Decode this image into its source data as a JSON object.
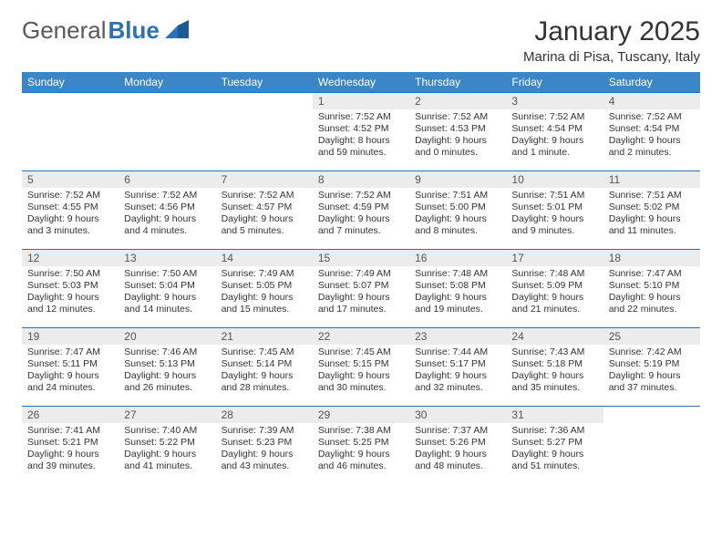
{
  "brand": {
    "part1": "General",
    "part2": "Blue"
  },
  "title": "January 2025",
  "location": "Marina di Pisa, Tuscany, Italy",
  "colors": {
    "header_bg": "#3b86c6",
    "border": "#2a72b5",
    "daynum_bg": "#ececec",
    "text": "#333333"
  },
  "weekdays": [
    "Sunday",
    "Monday",
    "Tuesday",
    "Wednesday",
    "Thursday",
    "Friday",
    "Saturday"
  ],
  "weeks": [
    [
      {
        "blank": true
      },
      {
        "blank": true
      },
      {
        "blank": true
      },
      {
        "day": "1",
        "sunrise": "Sunrise: 7:52 AM",
        "sunset": "Sunset: 4:52 PM",
        "daylight": "Daylight: 8 hours and 59 minutes."
      },
      {
        "day": "2",
        "sunrise": "Sunrise: 7:52 AM",
        "sunset": "Sunset: 4:53 PM",
        "daylight": "Daylight: 9 hours and 0 minutes."
      },
      {
        "day": "3",
        "sunrise": "Sunrise: 7:52 AM",
        "sunset": "Sunset: 4:54 PM",
        "daylight": "Daylight: 9 hours and 1 minute."
      },
      {
        "day": "4",
        "sunrise": "Sunrise: 7:52 AM",
        "sunset": "Sunset: 4:54 PM",
        "daylight": "Daylight: 9 hours and 2 minutes."
      }
    ],
    [
      {
        "day": "5",
        "sunrise": "Sunrise: 7:52 AM",
        "sunset": "Sunset: 4:55 PM",
        "daylight": "Daylight: 9 hours and 3 minutes."
      },
      {
        "day": "6",
        "sunrise": "Sunrise: 7:52 AM",
        "sunset": "Sunset: 4:56 PM",
        "daylight": "Daylight: 9 hours and 4 minutes."
      },
      {
        "day": "7",
        "sunrise": "Sunrise: 7:52 AM",
        "sunset": "Sunset: 4:57 PM",
        "daylight": "Daylight: 9 hours and 5 minutes."
      },
      {
        "day": "8",
        "sunrise": "Sunrise: 7:52 AM",
        "sunset": "Sunset: 4:59 PM",
        "daylight": "Daylight: 9 hours and 7 minutes."
      },
      {
        "day": "9",
        "sunrise": "Sunrise: 7:51 AM",
        "sunset": "Sunset: 5:00 PM",
        "daylight": "Daylight: 9 hours and 8 minutes."
      },
      {
        "day": "10",
        "sunrise": "Sunrise: 7:51 AM",
        "sunset": "Sunset: 5:01 PM",
        "daylight": "Daylight: 9 hours and 9 minutes."
      },
      {
        "day": "11",
        "sunrise": "Sunrise: 7:51 AM",
        "sunset": "Sunset: 5:02 PM",
        "daylight": "Daylight: 9 hours and 11 minutes."
      }
    ],
    [
      {
        "day": "12",
        "sunrise": "Sunrise: 7:50 AM",
        "sunset": "Sunset: 5:03 PM",
        "daylight": "Daylight: 9 hours and 12 minutes."
      },
      {
        "day": "13",
        "sunrise": "Sunrise: 7:50 AM",
        "sunset": "Sunset: 5:04 PM",
        "daylight": "Daylight: 9 hours and 14 minutes."
      },
      {
        "day": "14",
        "sunrise": "Sunrise: 7:49 AM",
        "sunset": "Sunset: 5:05 PM",
        "daylight": "Daylight: 9 hours and 15 minutes."
      },
      {
        "day": "15",
        "sunrise": "Sunrise: 7:49 AM",
        "sunset": "Sunset: 5:07 PM",
        "daylight": "Daylight: 9 hours and 17 minutes."
      },
      {
        "day": "16",
        "sunrise": "Sunrise: 7:48 AM",
        "sunset": "Sunset: 5:08 PM",
        "daylight": "Daylight: 9 hours and 19 minutes."
      },
      {
        "day": "17",
        "sunrise": "Sunrise: 7:48 AM",
        "sunset": "Sunset: 5:09 PM",
        "daylight": "Daylight: 9 hours and 21 minutes."
      },
      {
        "day": "18",
        "sunrise": "Sunrise: 7:47 AM",
        "sunset": "Sunset: 5:10 PM",
        "daylight": "Daylight: 9 hours and 22 minutes."
      }
    ],
    [
      {
        "day": "19",
        "sunrise": "Sunrise: 7:47 AM",
        "sunset": "Sunset: 5:11 PM",
        "daylight": "Daylight: 9 hours and 24 minutes."
      },
      {
        "day": "20",
        "sunrise": "Sunrise: 7:46 AM",
        "sunset": "Sunset: 5:13 PM",
        "daylight": "Daylight: 9 hours and 26 minutes."
      },
      {
        "day": "21",
        "sunrise": "Sunrise: 7:45 AM",
        "sunset": "Sunset: 5:14 PM",
        "daylight": "Daylight: 9 hours and 28 minutes."
      },
      {
        "day": "22",
        "sunrise": "Sunrise: 7:45 AM",
        "sunset": "Sunset: 5:15 PM",
        "daylight": "Daylight: 9 hours and 30 minutes."
      },
      {
        "day": "23",
        "sunrise": "Sunrise: 7:44 AM",
        "sunset": "Sunset: 5:17 PM",
        "daylight": "Daylight: 9 hours and 32 minutes."
      },
      {
        "day": "24",
        "sunrise": "Sunrise: 7:43 AM",
        "sunset": "Sunset: 5:18 PM",
        "daylight": "Daylight: 9 hours and 35 minutes."
      },
      {
        "day": "25",
        "sunrise": "Sunrise: 7:42 AM",
        "sunset": "Sunset: 5:19 PM",
        "daylight": "Daylight: 9 hours and 37 minutes."
      }
    ],
    [
      {
        "day": "26",
        "sunrise": "Sunrise: 7:41 AM",
        "sunset": "Sunset: 5:21 PM",
        "daylight": "Daylight: 9 hours and 39 minutes."
      },
      {
        "day": "27",
        "sunrise": "Sunrise: 7:40 AM",
        "sunset": "Sunset: 5:22 PM",
        "daylight": "Daylight: 9 hours and 41 minutes."
      },
      {
        "day": "28",
        "sunrise": "Sunrise: 7:39 AM",
        "sunset": "Sunset: 5:23 PM",
        "daylight": "Daylight: 9 hours and 43 minutes."
      },
      {
        "day": "29",
        "sunrise": "Sunrise: 7:38 AM",
        "sunset": "Sunset: 5:25 PM",
        "daylight": "Daylight: 9 hours and 46 minutes."
      },
      {
        "day": "30",
        "sunrise": "Sunrise: 7:37 AM",
        "sunset": "Sunset: 5:26 PM",
        "daylight": "Daylight: 9 hours and 48 minutes."
      },
      {
        "day": "31",
        "sunrise": "Sunrise: 7:36 AM",
        "sunset": "Sunset: 5:27 PM",
        "daylight": "Daylight: 9 hours and 51 minutes."
      },
      {
        "blank": true
      }
    ]
  ]
}
